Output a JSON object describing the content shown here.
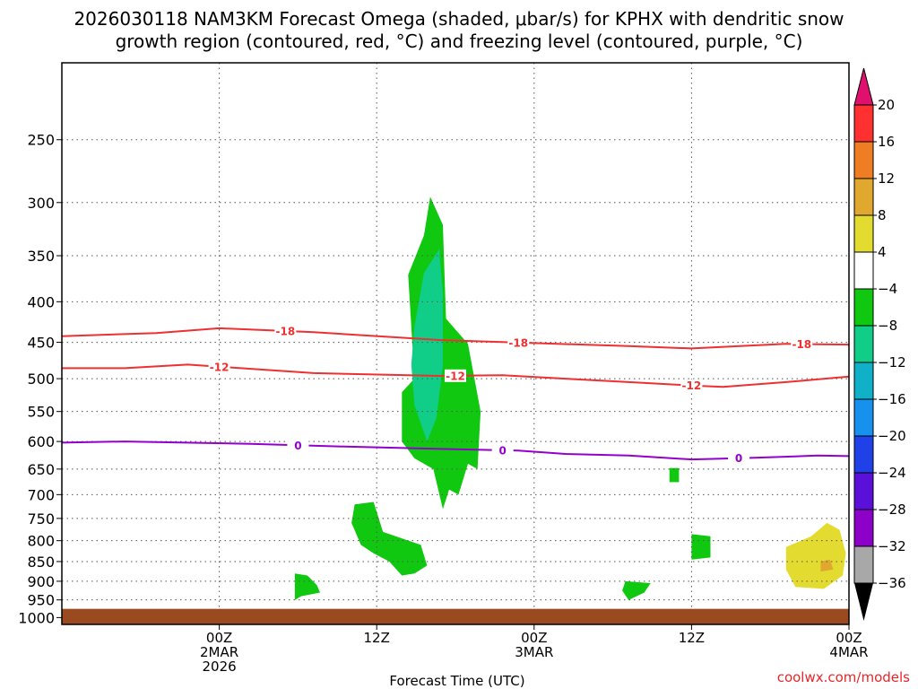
{
  "chart_data": {
    "type": "time-height",
    "title_line1": "2026030118 NAM3KM Forecast Omega (shaded, μbar/s) for KPHX with dendritic snow",
    "title_line2": "growth region (contoured, red, °C) and freezing level (contoured, purple, °C)",
    "xlabel": "Forecast Time (UTC)",
    "ylabel": "",
    "credit": "coolwx.com/models",
    "x_range_hours": [
      -5,
      20
    ],
    "y_axis": {
      "type": "log-pressure",
      "range_hpa": [
        1020,
        200
      ],
      "ticks": [
        250,
        300,
        350,
        400,
        450,
        500,
        550,
        600,
        650,
        700,
        750,
        800,
        850,
        900,
        950,
        1000
      ],
      "tick_labels": [
        "250",
        "300",
        "350",
        "400",
        "450",
        "500",
        "550",
        "600",
        "650",
        "700",
        "750",
        "800",
        "850",
        "900",
        "950",
        "1000"
      ]
    },
    "x_ticks": [
      {
        "hour": 0,
        "lines": [
          "00Z",
          "2MAR",
          "2026"
        ]
      },
      {
        "hour": 5,
        "lines": [
          "12Z"
        ]
      },
      {
        "hour": 10,
        "lines": [
          "00Z",
          "3MAR"
        ]
      },
      {
        "hour": 15,
        "lines": [
          "12Z"
        ]
      },
      {
        "hour": 20,
        "lines": [
          "00Z",
          "4MAR"
        ]
      }
    ],
    "colorbar": {
      "labels": [
        "20",
        "16",
        "12",
        "8",
        "4",
        "−4",
        "−8",
        "−12",
        "−16",
        "−20",
        "−24",
        "−28",
        "−32",
        "−36"
      ],
      "colors": [
        "#ff3030",
        "#ee7d24",
        "#e0a82e",
        "#e4db30",
        "#ffffff",
        "#11c811",
        "#10cd88",
        "#10b0c8",
        "#1890ee",
        "#2040e8",
        "#5a10d8",
        "#8c00c8",
        "#a8a8a8"
      ],
      "top_color": "#e0106e",
      "bottom_color": "#000000"
    },
    "omega_regions": [
      {
        "name": "upward-motion-core",
        "value_range": "-8 to -4",
        "color": "#11c811",
        "points": [
          [
            6.7,
            295
          ],
          [
            7.1,
            320
          ],
          [
            7.2,
            420
          ],
          [
            7.9,
            452
          ],
          [
            8.3,
            550
          ],
          [
            8.2,
            650
          ],
          [
            7.9,
            640
          ],
          [
            7.6,
            700
          ],
          [
            7.3,
            690
          ],
          [
            7.1,
            730
          ],
          [
            6.8,
            650
          ],
          [
            6.2,
            630
          ],
          [
            5.8,
            600
          ],
          [
            5.8,
            520
          ],
          [
            6.2,
            500
          ],
          [
            6.0,
            370
          ],
          [
            6.5,
            330
          ]
        ]
      },
      {
        "name": "strong-upward-core",
        "value_range": "-12 to -8",
        "color": "#10cd88",
        "points": [
          [
            7.0,
            343
          ],
          [
            7.0,
            350
          ],
          [
            7.1,
            390
          ],
          [
            7.1,
            480
          ],
          [
            6.9,
            560
          ],
          [
            6.6,
            600
          ],
          [
            6.2,
            540
          ],
          [
            6.1,
            480
          ],
          [
            6.2,
            430
          ],
          [
            6.5,
            368
          ]
        ]
      },
      {
        "name": "low-level-cell-1",
        "value_range": "-8 to -4",
        "color": "#11c811",
        "points": [
          [
            4.3,
            720
          ],
          [
            4.9,
            715
          ],
          [
            5.2,
            780
          ],
          [
            6.4,
            810
          ],
          [
            6.6,
            860
          ],
          [
            6.2,
            880
          ],
          [
            5.8,
            885
          ],
          [
            5.4,
            850
          ],
          [
            4.9,
            830
          ],
          [
            4.5,
            810
          ],
          [
            4.2,
            760
          ]
        ]
      },
      {
        "name": "low-level-cell-2",
        "value_range": "-8 to -4",
        "color": "#11c811",
        "points": [
          [
            2.4,
            880
          ],
          [
            2.8,
            885
          ],
          [
            3.1,
            910
          ],
          [
            3.2,
            930
          ],
          [
            2.6,
            940
          ],
          [
            2.4,
            950
          ]
        ]
      },
      {
        "name": "low-level-cell-3",
        "value_range": "-8 to -4",
        "color": "#11c811",
        "points": [
          [
            15.0,
            785
          ],
          [
            15.6,
            790
          ],
          [
            15.6,
            840
          ],
          [
            15.0,
            845
          ]
        ]
      },
      {
        "name": "low-level-cell-4",
        "value_range": "-8 to -4",
        "color": "#11c811",
        "points": [
          [
            12.9,
            900
          ],
          [
            13.7,
            905
          ],
          [
            13.5,
            930
          ],
          [
            13.0,
            950
          ],
          [
            12.8,
            925
          ]
        ]
      },
      {
        "name": "small-cell-650",
        "value_range": "-8 to -4",
        "color": "#11c811",
        "points": [
          [
            14.3,
            648
          ],
          [
            14.6,
            648
          ],
          [
            14.6,
            675
          ],
          [
            14.3,
            675
          ]
        ]
      },
      {
        "name": "descent-cell",
        "value_range": "4 to 8",
        "color": "#e4db30",
        "points": [
          [
            18.0,
            815
          ],
          [
            18.8,
            790
          ],
          [
            19.3,
            760
          ],
          [
            19.7,
            775
          ],
          [
            19.9,
            830
          ],
          [
            19.8,
            885
          ],
          [
            19.2,
            920
          ],
          [
            18.3,
            915
          ],
          [
            18.0,
            870
          ]
        ]
      },
      {
        "name": "descent-core",
        "value_range": "8 to 12",
        "color": "#e0a82e",
        "points": [
          [
            19.1,
            850
          ],
          [
            19.4,
            845
          ],
          [
            19.5,
            870
          ],
          [
            19.1,
            875
          ]
        ]
      }
    ],
    "isotherms": [
      {
        "label": "-18",
        "color": "#ee3030",
        "label_hours": [
          2.1,
          9.5,
          18.5
        ],
        "points": [
          [
            -5,
            442
          ],
          [
            -2,
            438
          ],
          [
            0,
            432
          ],
          [
            3,
            437
          ],
          [
            7,
            447
          ],
          [
            10,
            451
          ],
          [
            13,
            455
          ],
          [
            15,
            458
          ],
          [
            18,
            452
          ],
          [
            20,
            453
          ],
          [
            20,
            455
          ]
        ]
      },
      {
        "label": "-12",
        "color": "#ee3030",
        "label_hours": [
          0.0,
          7.5,
          15.0
        ],
        "points": [
          [
            -5,
            485
          ],
          [
            -3,
            485
          ],
          [
            -1,
            480
          ],
          [
            3,
            492
          ],
          [
            7,
            496
          ],
          [
            9,
            495
          ],
          [
            11,
            500
          ],
          [
            13,
            505
          ],
          [
            15,
            510
          ],
          [
            16,
            512
          ],
          [
            18,
            505
          ],
          [
            20,
            497
          ]
        ]
      },
      {
        "label": "0",
        "color": "#9400cc",
        "label_hours": [
          2.5,
          9.0,
          16.5
        ],
        "points": [
          [
            -5,
            602
          ],
          [
            -3,
            600
          ],
          [
            1,
            604
          ],
          [
            4,
            609
          ],
          [
            7,
            613
          ],
          [
            9.5,
            616
          ],
          [
            11,
            622
          ],
          [
            13,
            625
          ],
          [
            15,
            632
          ],
          [
            17,
            629
          ],
          [
            19,
            625
          ],
          [
            20,
            626
          ]
        ]
      }
    ],
    "ground": {
      "color": "#9a4a1e",
      "pressure_hpa": 975
    }
  }
}
